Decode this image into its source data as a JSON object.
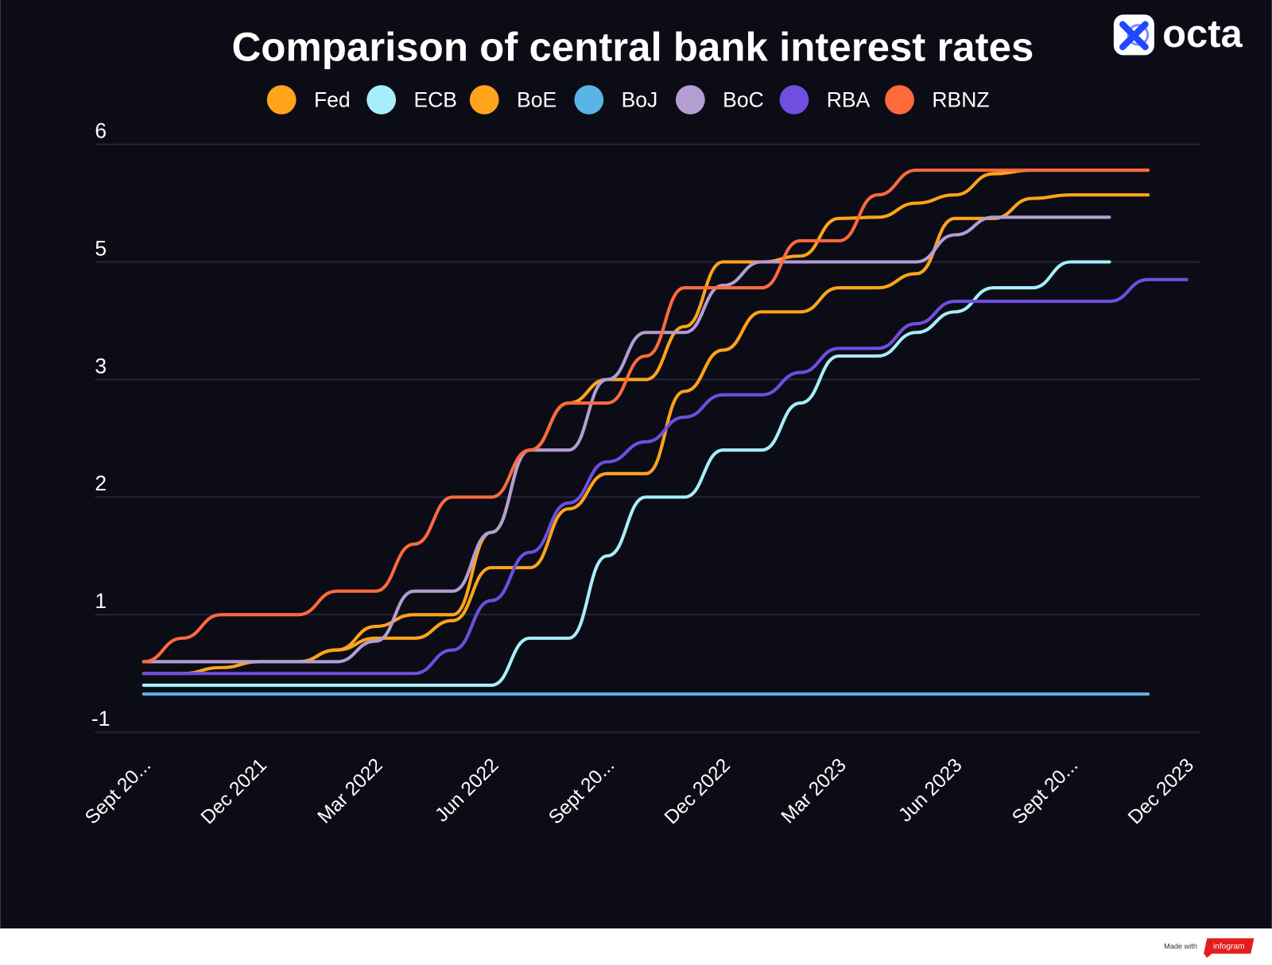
{
  "logo": "octa",
  "footer": {
    "made_with": "Made with",
    "brand": "infogram"
  },
  "chart_data": {
    "type": "line",
    "title": "Comparison of central bank interest rates",
    "categories": [
      "Sept 20...",
      null,
      null,
      "Dec 2021",
      null,
      null,
      "Mar 2022",
      null,
      null,
      "Jun 2022",
      null,
      null,
      "Sept 20...",
      null,
      null,
      "Dec 2022",
      null,
      null,
      "Mar 2023",
      null,
      null,
      "Jun 2023",
      null,
      null,
      "Sept 20...",
      null,
      null,
      "Dec 2023"
    ],
    "ylim": [
      -1,
      6
    ],
    "yticks": [
      -1,
      1,
      2,
      3,
      5,
      6
    ],
    "grid": true,
    "legend": "top",
    "series": [
      {
        "name": "Fed",
        "color": "#ffa41b",
        "values": [
          0.2,
          0.2,
          0.2,
          0.2,
          0.2,
          0.4,
          0.8,
          1,
          1,
          1.7,
          2.4,
          2.8,
          3,
          3,
          3.9,
          5,
          5,
          5.05,
          5.37,
          5.38,
          5.5,
          5.57,
          5.75,
          5.78,
          5.78,
          5.78,
          5.78,
          null
        ]
      },
      {
        "name": "ECB",
        "color": "#a6eefa",
        "values": [
          -0.2,
          -0.2,
          -0.2,
          -0.2,
          -0.2,
          -0.2,
          -0.2,
          -0.2,
          -0.2,
          -0.2,
          0.6,
          0.6,
          1.5,
          2,
          2,
          2.4,
          2.4,
          2.8,
          3.4,
          3.4,
          3.8,
          4.15,
          4.56,
          4.56,
          5,
          5,
          null,
          null
        ]
      },
      {
        "name": "BoE",
        "color": "#ffa41b",
        "values": [
          0,
          0,
          0.1,
          0.2,
          0.2,
          0.4,
          0.6,
          0.6,
          0.9,
          1.4,
          1.4,
          1.9,
          2.2,
          2.2,
          2.9,
          3.5,
          4.15,
          4.15,
          4.56,
          4.56,
          4.8,
          5.37,
          5.37,
          5.54,
          5.57,
          5.57,
          5.57,
          null
        ]
      },
      {
        "name": "BoJ",
        "color": "#5ab4e6",
        "values": [
          -0.35,
          -0.35,
          -0.35,
          -0.35,
          -0.35,
          -0.35,
          -0.35,
          -0.35,
          -0.35,
          -0.35,
          -0.35,
          -0.35,
          -0.35,
          -0.35,
          -0.35,
          -0.35,
          -0.35,
          -0.35,
          -0.35,
          -0.35,
          -0.35,
          -0.35,
          -0.35,
          -0.35,
          -0.35,
          -0.35,
          -0.35,
          null
        ]
      },
      {
        "name": "BoC",
        "color": "#b39dd3",
        "values": [
          0.2,
          0.2,
          0.2,
          0.2,
          0.2,
          0.2,
          0.55,
          1.2,
          1.2,
          1.7,
          2.4,
          2.4,
          3,
          3.8,
          3.8,
          4.6,
          5,
          5,
          5,
          5,
          5,
          5.23,
          5.38,
          5.38,
          5.38,
          5.38,
          null,
          null
        ]
      },
      {
        "name": "RBA",
        "color": "#6f4ee0",
        "values": [
          0,
          0,
          0,
          0,
          0,
          0,
          0,
          0,
          0.4,
          1.12,
          1.53,
          1.95,
          2.3,
          2.47,
          2.68,
          2.87,
          2.87,
          3.12,
          3.53,
          3.53,
          3.95,
          4.33,
          4.33,
          4.33,
          4.33,
          4.33,
          4.7,
          4.7
        ]
      },
      {
        "name": "RBNZ",
        "color": "#ff6a3d",
        "values": [
          0.2,
          0.6,
          1,
          1,
          1,
          1.2,
          1.2,
          1.6,
          2,
          2,
          2.4,
          2.8,
          2.8,
          3.4,
          4.56,
          4.56,
          4.56,
          5.18,
          5.18,
          5.57,
          5.78,
          5.78,
          5.78,
          5.78,
          5.78,
          5.78,
          5.78,
          null
        ]
      }
    ]
  }
}
